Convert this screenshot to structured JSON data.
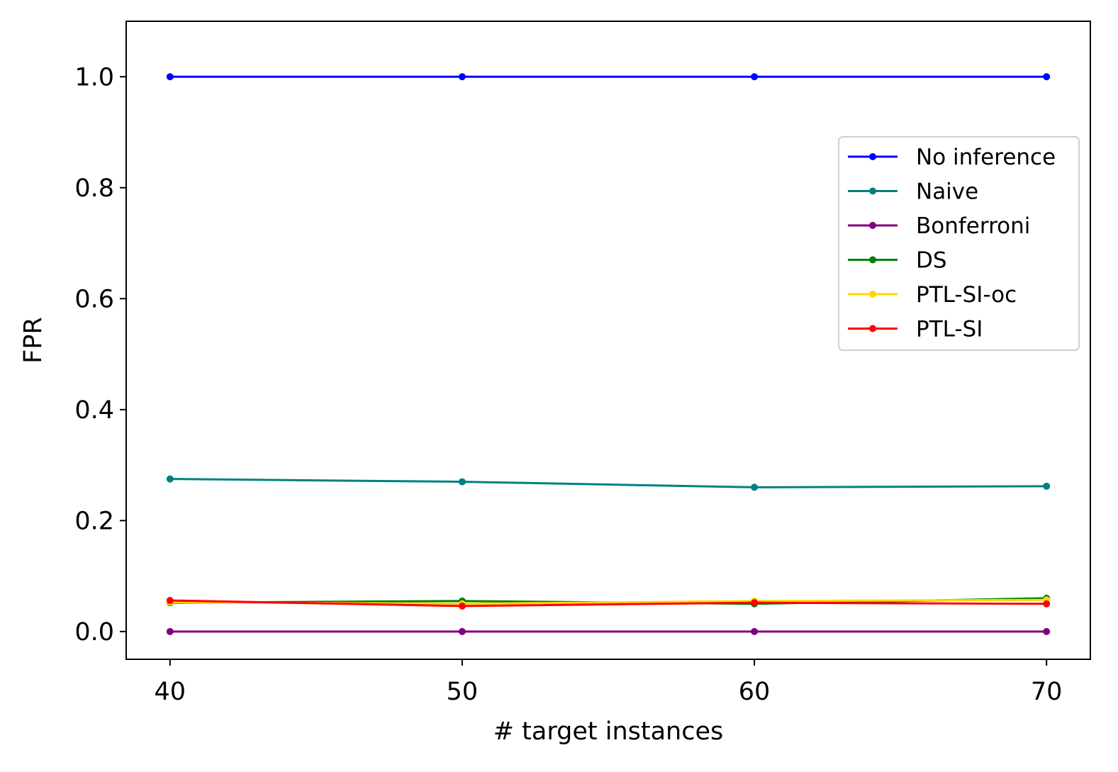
{
  "chart_data": {
    "type": "line",
    "xlabel": "# target instances",
    "ylabel": "FPR",
    "x": [
      40,
      50,
      60,
      70
    ],
    "xlim": [
      38.5,
      71.5
    ],
    "ylim": [
      -0.05,
      1.1
    ],
    "xticks": [
      40,
      50,
      60,
      70
    ],
    "yticks": [
      0.0,
      0.2,
      0.4,
      0.6,
      0.8,
      1.0
    ],
    "xtick_labels": [
      "40",
      "50",
      "60",
      "70"
    ],
    "ytick_labels": [
      "0.0",
      "0.2",
      "0.4",
      "0.6",
      "0.8",
      "1.0"
    ],
    "grid": false,
    "legend_position": "right, upper-middle",
    "series": [
      {
        "name": "No inference",
        "color": "#0000ff",
        "values": [
          1.0,
          1.0,
          1.0,
          1.0
        ]
      },
      {
        "name": "Naive",
        "color": "#008080",
        "values": [
          0.275,
          0.27,
          0.26,
          0.262
        ]
      },
      {
        "name": "Bonferroni",
        "color": "#800080",
        "values": [
          0.0,
          0.0,
          0.0,
          0.0
        ]
      },
      {
        "name": "DS",
        "color": "#008000",
        "values": [
          0.052,
          0.055,
          0.05,
          0.06
        ]
      },
      {
        "name": "PTL-SI-oc",
        "color": "#ffd700",
        "values": [
          0.053,
          0.05,
          0.055,
          0.057
        ]
      },
      {
        "name": "PTL-SI",
        "color": "#ff0000",
        "values": [
          0.056,
          0.046,
          0.052,
          0.05
        ]
      }
    ]
  }
}
